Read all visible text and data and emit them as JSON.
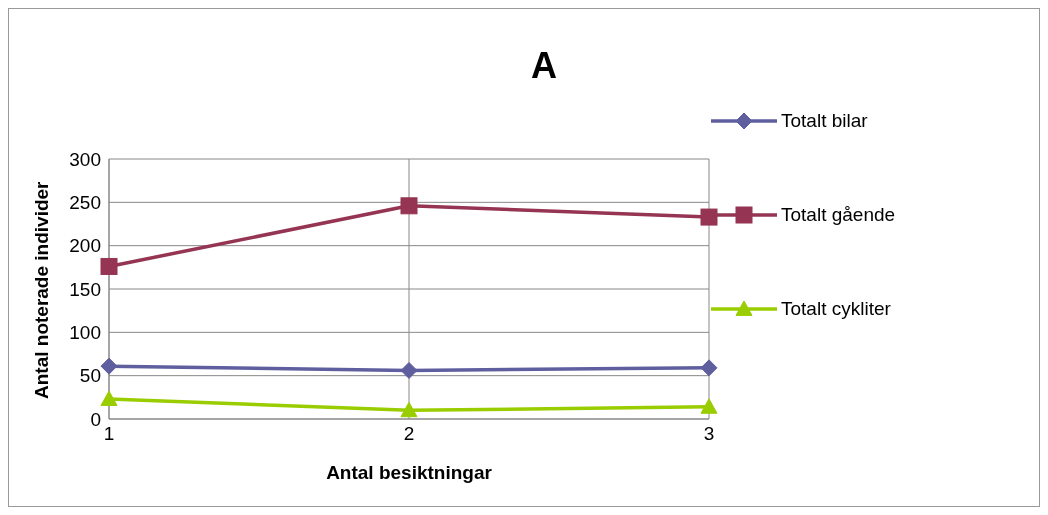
{
  "chart_data": {
    "type": "line",
    "title": "A",
    "xlabel": "Antal besiktningar",
    "ylabel": "Antal noterade individer",
    "categories": [
      "1",
      "2",
      "3"
    ],
    "series": [
      {
        "name": "Totalt bilar",
        "color": "#5f5f9f",
        "marker": "diamond",
        "values": [
          61,
          56,
          59
        ]
      },
      {
        "name": "Totalt gående",
        "color": "#953553",
        "marker": "square",
        "values": [
          176,
          246,
          233
        ]
      },
      {
        "name": "Totalt cykliter",
        "color": "#9acd00",
        "marker": "triangle",
        "values": [
          23,
          10,
          14
        ]
      }
    ],
    "ylim": [
      0,
      300
    ],
    "yticks": [
      0,
      50,
      100,
      150,
      200,
      250,
      300
    ],
    "grid": true,
    "legend": "right"
  }
}
